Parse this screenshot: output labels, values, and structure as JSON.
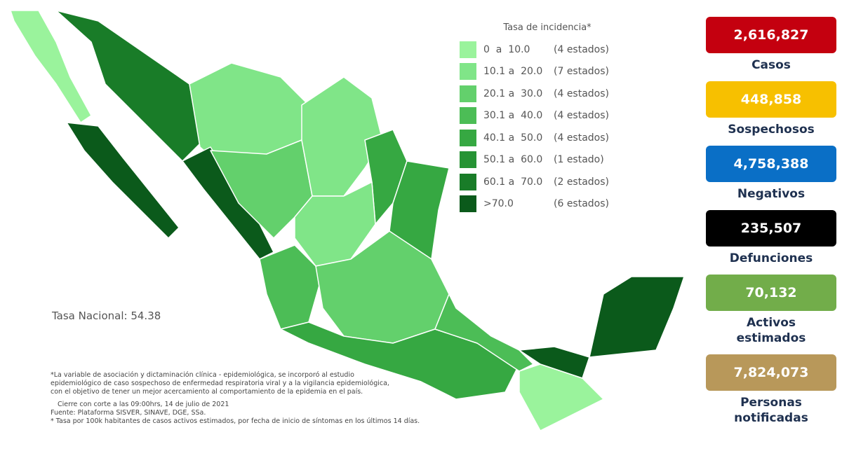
{
  "legend": {
    "title": "Tasa de incidencia*",
    "items": [
      {
        "range": "0  a  10.0",
        "count": "(4 estados)",
        "color": "#9af39c"
      },
      {
        "range": "10.1 a  20.0",
        "count": "(7 estados)",
        "color": "#80e588"
      },
      {
        "range": "20.1 a  30.0",
        "count": "(4 estados)",
        "color": "#63d06c"
      },
      {
        "range": "30.1 a  40.0",
        "count": "(4 estados)",
        "color": "#4cbd56"
      },
      {
        "range": "40.1 a  50.0",
        "count": "(4 estados)",
        "color": "#36a842"
      },
      {
        "range": "50.1 a  60.0",
        "count": "(1 estado)",
        "color": "#269334"
      },
      {
        "range": "60.1 a  70.0",
        "count": "(2 estados)",
        "color": "#197c28"
      },
      {
        "range": ">70.0",
        "count": "(6 estados)",
        "color": "#0b5a1b"
      }
    ]
  },
  "national_rate": "Tasa Nacional: 54.38",
  "notes": [
    "*La variable de asociación y dictaminación clínica - epidemiológica, se incorporó al estudio",
    "epidemiológico de caso sospechoso de enfermedad respiratoria viral y a la vigilancia epidemiológica,",
    "con el objetivo de tener un mejor acercamiento al comportamiento de la epidemia en el país.",
    "Cierre con corte a las 09:00hrs, 14 de julio de 2021",
    "Fuente: Plataforma SISVER, SINAVE, DGE, SSa.",
    "* Tasa por 100k habitantes de casos activos estimados, por fecha de inicio de síntomas en los últimos 14 días."
  ],
  "stats": [
    {
      "value": "2,616,827",
      "label": "Casos",
      "color": "#c4000f"
    },
    {
      "value": "448,858",
      "label": "Sospechosos",
      "color": "#f7c000"
    },
    {
      "value": "4,758,388",
      "label": "Negativos",
      "color": "#0a6fc6"
    },
    {
      "value": "235,507",
      "label": "Defunciones",
      "color": "#000000"
    },
    {
      "value": "70,132",
      "label": "Activos estimados",
      "color": "#72ad4a"
    },
    {
      "value": "7,824,073",
      "label": "Personas notificadas",
      "color": "#b8985a"
    }
  ]
}
